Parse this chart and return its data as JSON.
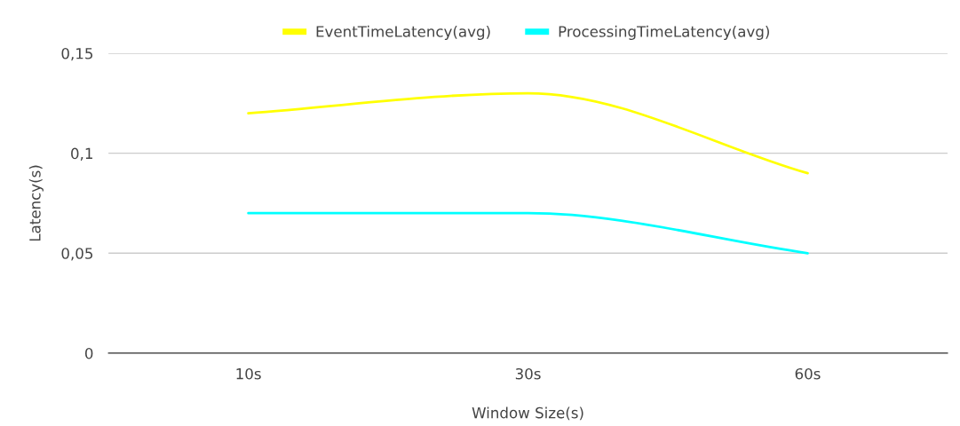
{
  "chart_data": {
    "type": "line",
    "xlabel": "Window Size(s)",
    "ylabel": "Latency(s)",
    "categories": [
      "10s",
      "30s",
      "60s"
    ],
    "series": [
      {
        "name": "EventTimeLatency(avg)",
        "color": "#ffff00",
        "values": [
          0.12,
          0.13,
          0.09
        ]
      },
      {
        "name": "ProcessingTimeLatency(avg)",
        "color": "#00ffff",
        "values": [
          0.07,
          0.07,
          0.05
        ]
      }
    ],
    "ylim": [
      0,
      0.15
    ],
    "yticks": [
      0,
      {
        "value": 0.05,
        "label": "0,05"
      },
      {
        "value": 0.1,
        "label": "0,1"
      },
      {
        "value": 0.15,
        "label": "0,15"
      }
    ],
    "grid": "y",
    "legend": "top"
  }
}
